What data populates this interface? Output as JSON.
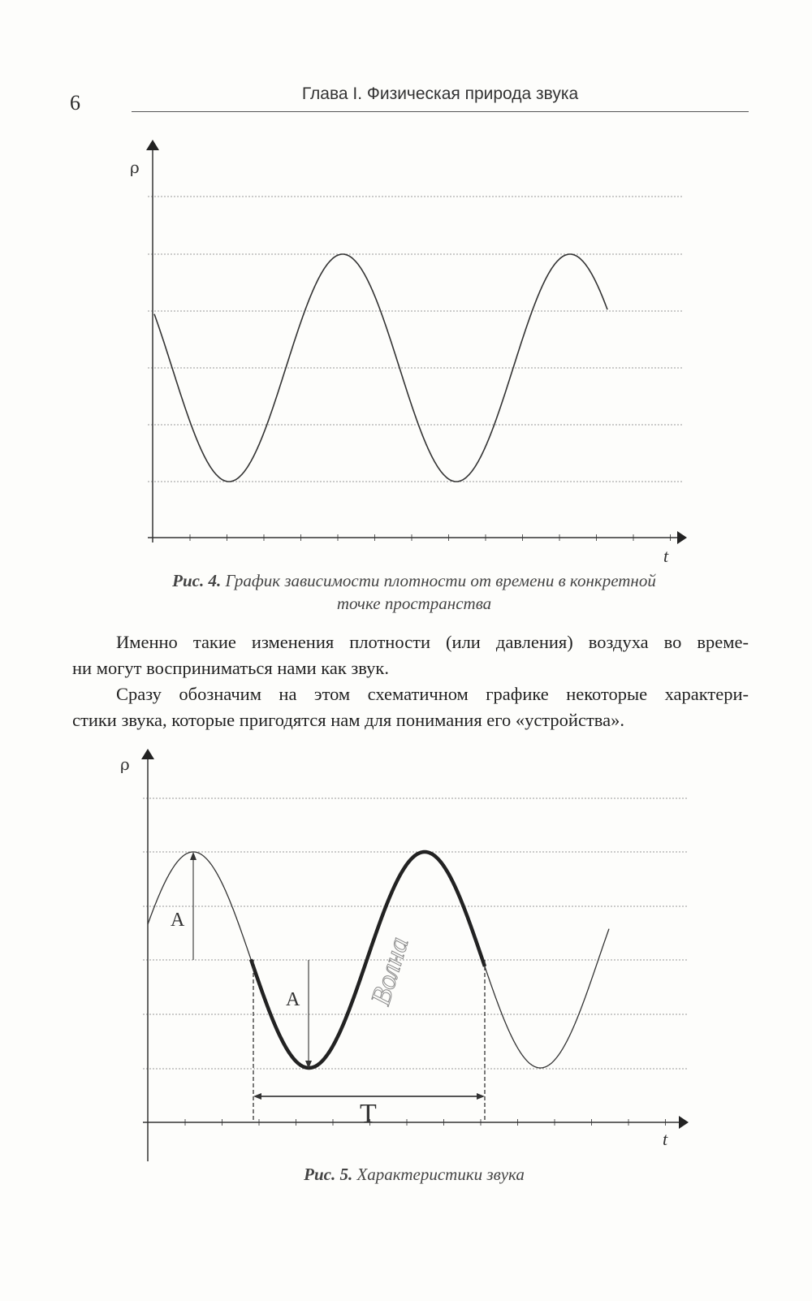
{
  "page": {
    "number": "6",
    "running_head": "Глава I. Физическая природа звука"
  },
  "figure4": {
    "y_label": "ρ",
    "x_label": "t",
    "caption_label": "Рис. 4.",
    "caption_text_line1": "График зависимости плотности от времени в конкретной",
    "caption_text_line2": "точке пространства"
  },
  "paragraphs": [
    {
      "lines": [
        "Именно такие изменения плотности (или давления) воздуха во време-",
        "ни могут восприниматься нами как звук."
      ]
    },
    {
      "lines": [
        "Сразу обозначим на этом схематичном графике некоторые характери-",
        "стики звука, которые пригодятся нам для понимания его «устройства»."
      ]
    }
  ],
  "figure5": {
    "y_label": "ρ",
    "x_label": "t",
    "amplitude_label": "A",
    "period_label": "T",
    "wave_label": "Волна",
    "caption_label": "Рис. 5.",
    "caption_text": "Характеристики звука"
  },
  "colors": {
    "ink": "#2a2a2a",
    "grid": "#9a9a9a",
    "wave_label": "#8a8a8a"
  }
}
